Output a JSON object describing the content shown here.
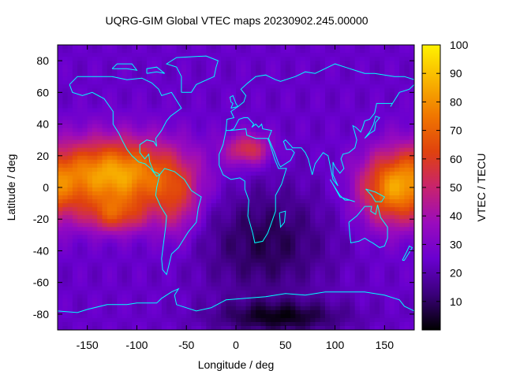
{
  "chart_data": {
    "type": "heatmap",
    "title": "UQRG-GIM Global VTEC maps 20230902.245.00000",
    "xlabel": "Longitude / deg",
    "ylabel": "Latitude / deg",
    "colorbar_label": "VTEC / TECU",
    "xlim": [
      -180,
      180
    ],
    "ylim": [
      -90,
      90
    ],
    "x_ticks": [
      -150,
      -100,
      -50,
      0,
      50,
      100,
      150
    ],
    "y_ticks": [
      80,
      60,
      40,
      20,
      0,
      -20,
      -40,
      -60,
      -80
    ],
    "color_range": [
      0,
      100
    ],
    "colorbar_ticks": [
      10,
      20,
      30,
      40,
      50,
      60,
      70,
      80,
      90,
      100
    ],
    "colormap": [
      "#000000",
      "#3a007a",
      "#6a00d0",
      "#9a0bbd",
      "#c8236e",
      "#e0420e",
      "#f07600",
      "#f8b400",
      "#fff200"
    ],
    "grid": false,
    "coastline_color": "#00ffff",
    "field_approx": {
      "description_units": "TECU",
      "background": 24,
      "features": [
        {
          "lon": -122,
          "lat": 8,
          "peak": 62,
          "sigma_lon": 48,
          "sigma_lat": 16
        },
        {
          "lon": -122,
          "lat": -18,
          "peak": 28,
          "sigma_lon": 22,
          "sigma_lat": 8
        },
        {
          "lon": -60,
          "lat": -10,
          "peak": 22,
          "sigma_lon": 16,
          "sigma_lat": 16
        },
        {
          "lon": 12,
          "lat": 24,
          "peak": 32,
          "sigma_lon": 16,
          "sigma_lat": 7
        },
        {
          "lon": 158,
          "lat": -2,
          "peak": 46,
          "sigma_lon": 24,
          "sigma_lat": 16
        },
        {
          "lon": 30,
          "lat": -35,
          "peak": -16,
          "sigma_lon": 45,
          "sigma_lat": 25
        },
        {
          "lon": 45,
          "lat": -82,
          "peak": -20,
          "sigma_lon": 45,
          "sigma_lat": 7
        }
      ]
    }
  }
}
